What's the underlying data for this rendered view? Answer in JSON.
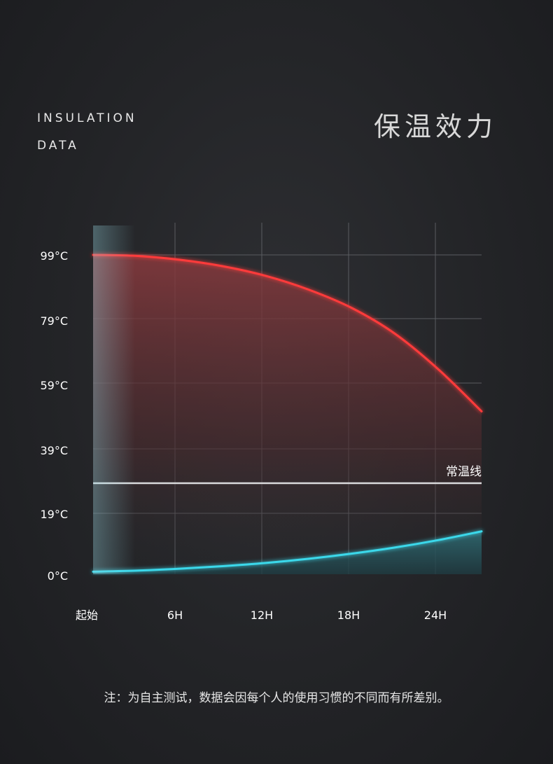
{
  "header": {
    "title_en_line1": "INSULATION",
    "title_en_line2": "DATA",
    "title_cn": "保温效力"
  },
  "chart_data": {
    "type": "area",
    "x_ticks": [
      "起始",
      "6H",
      "12H",
      "18H",
      "24H"
    ],
    "y_ticks": [
      "99°C",
      "79°C",
      "59°C",
      "39°C",
      "19°C",
      "0°C"
    ],
    "y_tick_values": [
      99,
      79,
      59,
      39,
      19,
      0
    ],
    "x": [
      0,
      3,
      6,
      9,
      12,
      15,
      18,
      21,
      24,
      27
    ],
    "series": [
      {
        "color": "#ff3a3a",
        "values": [
          99,
          98.7,
          97.5,
          95.5,
          92.5,
          88.2,
          82.5,
          74.5,
          63.5,
          50.5
        ]
      },
      {
        "color": "#3ad8ea",
        "values": [
          0.8,
          1.1,
          1.7,
          2.5,
          3.5,
          4.8,
          6.4,
          8.3,
          10.6,
          13.3
        ]
      }
    ],
    "reference_line": {
      "label": "常温线",
      "value": 29
    },
    "ylim": [
      0,
      99
    ],
    "xlim": [
      0,
      27
    ],
    "grid": true
  },
  "footnote": "注：为自主测试，数据会因每个人的使用习惯的不同而有所差别。"
}
